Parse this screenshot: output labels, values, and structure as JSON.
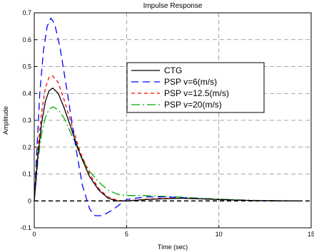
{
  "chart_data": {
    "type": "line",
    "title": "Impulse Response",
    "xlabel": "Time (sec)",
    "ylabel": "Amplitude",
    "xlim": [
      0,
      15
    ],
    "ylim": [
      -0.1,
      0.7
    ],
    "xticks": [
      "0",
      "5",
      "10",
      "15"
    ],
    "yticks": [
      "-0.1",
      "0",
      "0.1",
      "0.2",
      "0.3",
      "0.4",
      "0.5",
      "0.6",
      "0.7"
    ],
    "grid": true,
    "legend_position": "center-right",
    "reference_line": {
      "y": 0,
      "style": "dashed",
      "color": "#000000"
    },
    "series": [
      {
        "name": "CTG",
        "color": "#000000",
        "dash": "solid",
        "points": [
          [
            0,
            0
          ],
          [
            0.2,
            0.17
          ],
          [
            0.4,
            0.29
          ],
          [
            0.6,
            0.37
          ],
          [
            0.8,
            0.41
          ],
          [
            1.0,
            0.42
          ],
          [
            1.3,
            0.4
          ],
          [
            1.6,
            0.35
          ],
          [
            2.0,
            0.27
          ],
          [
            2.5,
            0.17
          ],
          [
            3.0,
            0.09
          ],
          [
            3.5,
            0.04
          ],
          [
            4.0,
            0.01
          ],
          [
            4.5,
            0.0
          ],
          [
            5.0,
            0.0
          ],
          [
            6.0,
            0.005
          ],
          [
            7.0,
            0.008
          ],
          [
            8.0,
            0.01
          ],
          [
            9.0,
            0.008
          ],
          [
            10.0,
            0.005
          ],
          [
            11.0,
            0.003
          ],
          [
            12.0,
            0.001
          ],
          [
            14.5,
            0.0
          ]
        ]
      },
      {
        "name": "PSP v=6(m/s)",
        "color": "#0000ff",
        "dash": "10,6",
        "points": [
          [
            0,
            0
          ],
          [
            0.15,
            0.2
          ],
          [
            0.3,
            0.4
          ],
          [
            0.5,
            0.56
          ],
          [
            0.7,
            0.65
          ],
          [
            0.9,
            0.68
          ],
          [
            1.1,
            0.66
          ],
          [
            1.4,
            0.57
          ],
          [
            1.8,
            0.4
          ],
          [
            2.2,
            0.22
          ],
          [
            2.6,
            0.06
          ],
          [
            3.0,
            -0.03
          ],
          [
            3.3,
            -0.055
          ],
          [
            3.7,
            -0.055
          ],
          [
            4.2,
            -0.035
          ],
          [
            4.7,
            -0.01
          ],
          [
            5.0,
            0.005
          ],
          [
            6.0,
            0.015
          ],
          [
            7.0,
            0.015
          ],
          [
            8.0,
            0.012
          ],
          [
            9.0,
            0.008
          ],
          [
            10.0,
            0.005
          ],
          [
            11.0,
            0.003
          ],
          [
            12.0,
            0.001
          ],
          [
            14.5,
            0.0
          ]
        ]
      },
      {
        "name": "PSP v=12.5(m/s)",
        "color": "#ff0000",
        "dash": "5,4",
        "points": [
          [
            0,
            0
          ],
          [
            0.2,
            0.2
          ],
          [
            0.4,
            0.33
          ],
          [
            0.6,
            0.42
          ],
          [
            0.8,
            0.46
          ],
          [
            1.0,
            0.465
          ],
          [
            1.3,
            0.44
          ],
          [
            1.6,
            0.38
          ],
          [
            2.0,
            0.29
          ],
          [
            2.5,
            0.18
          ],
          [
            3.0,
            0.1
          ],
          [
            3.5,
            0.045
          ],
          [
            4.0,
            0.015
          ],
          [
            4.5,
            0.002
          ],
          [
            5.0,
            0.0
          ],
          [
            6.0,
            0.006
          ],
          [
            7.0,
            0.01
          ],
          [
            8.0,
            0.01
          ],
          [
            9.0,
            0.008
          ],
          [
            10.0,
            0.005
          ],
          [
            11.0,
            0.003
          ],
          [
            12.0,
            0.001
          ],
          [
            14.5,
            0.0
          ]
        ]
      },
      {
        "name": "PSP v=20(m/s)",
        "color": "#00aa00",
        "dash": "12,4,2,4",
        "points": [
          [
            0,
            0
          ],
          [
            0.2,
            0.15
          ],
          [
            0.4,
            0.25
          ],
          [
            0.6,
            0.31
          ],
          [
            0.8,
            0.34
          ],
          [
            1.0,
            0.35
          ],
          [
            1.3,
            0.34
          ],
          [
            1.6,
            0.31
          ],
          [
            2.0,
            0.25
          ],
          [
            2.5,
            0.17
          ],
          [
            3.0,
            0.11
          ],
          [
            3.5,
            0.07
          ],
          [
            4.0,
            0.04
          ],
          [
            4.5,
            0.025
          ],
          [
            5.0,
            0.02
          ],
          [
            6.0,
            0.02
          ],
          [
            7.0,
            0.017
          ],
          [
            8.0,
            0.014
          ],
          [
            9.0,
            0.01
          ],
          [
            10.0,
            0.007
          ],
          [
            11.0,
            0.004
          ],
          [
            12.0,
            0.002
          ],
          [
            14.5,
            0.0
          ]
        ]
      }
    ]
  }
}
